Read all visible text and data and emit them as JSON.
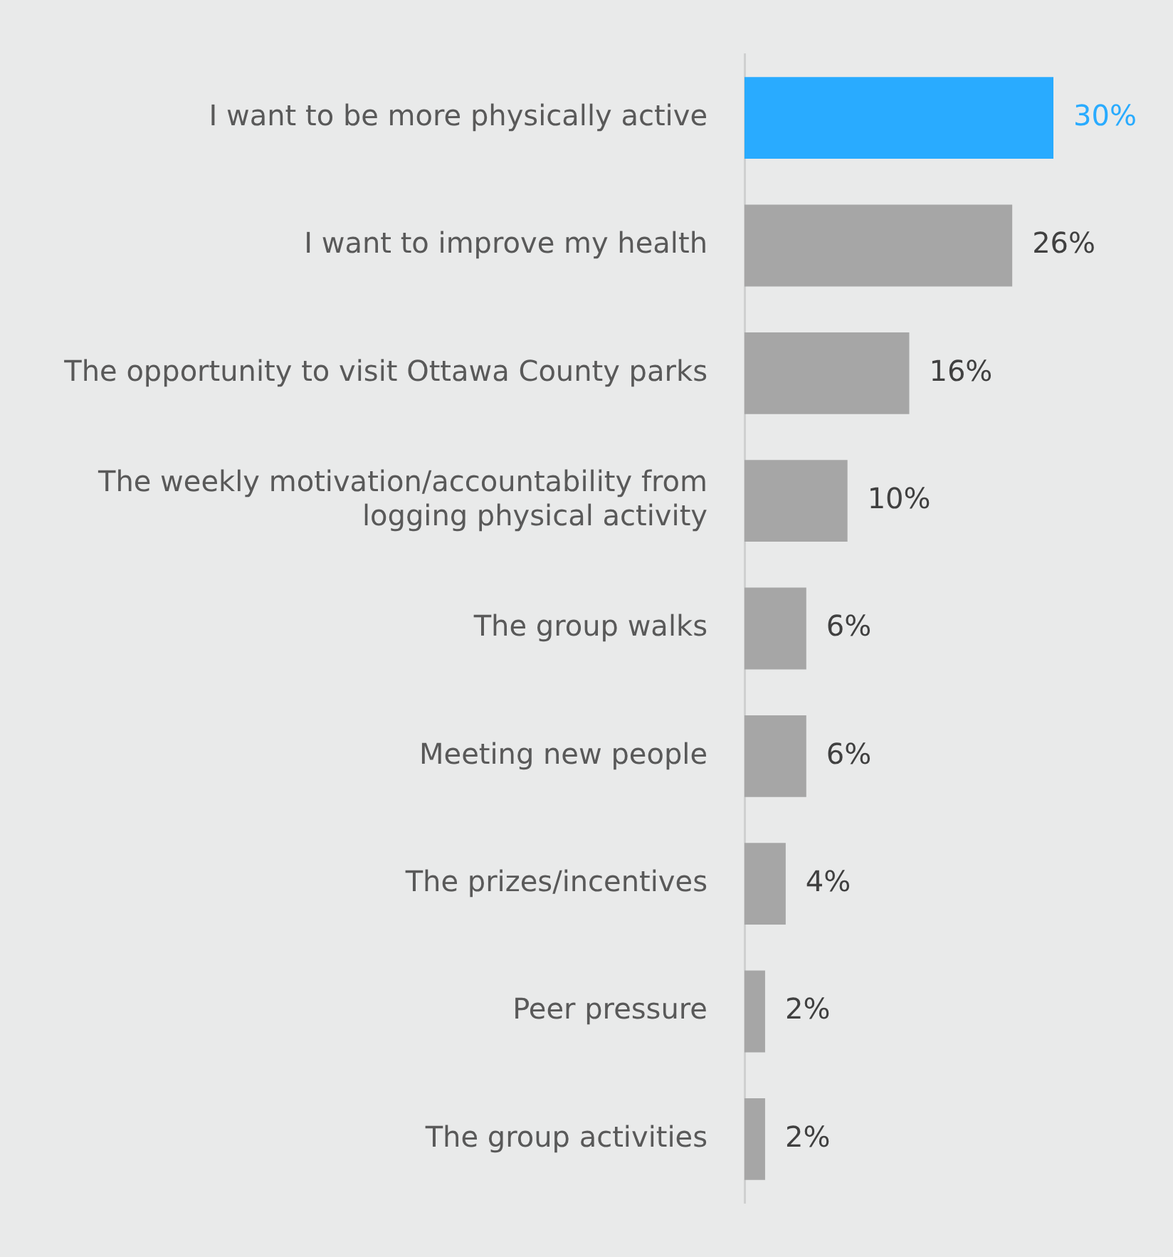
{
  "chart_data": {
    "type": "bar",
    "orientation": "horizontal",
    "categories": [
      "I want to be more physically active",
      "I want to improve my health",
      "The opportunity to visit Ottawa County parks",
      "The weekly motivation/accountability from logging physical activity",
      "The group walks",
      "Meeting new people",
      "The prizes/incentives",
      "Peer pressure",
      "The group activities"
    ],
    "values": [
      30,
      26,
      16,
      10,
      6,
      6,
      4,
      2,
      2
    ],
    "colors": [
      "#29abff",
      "#a6a6a6",
      "#a6a6a6",
      "#a6a6a6",
      "#a6a6a6",
      "#a6a6a6",
      "#a6a6a6",
      "#a6a6a6",
      "#a6a6a6"
    ],
    "value_labels": [
      "30%",
      "26%",
      "16%",
      "10%",
      "6%",
      "6%",
      "4%",
      "2%",
      "2%"
    ],
    "tick_labels": "y",
    "grid": false,
    "legend": false
  }
}
